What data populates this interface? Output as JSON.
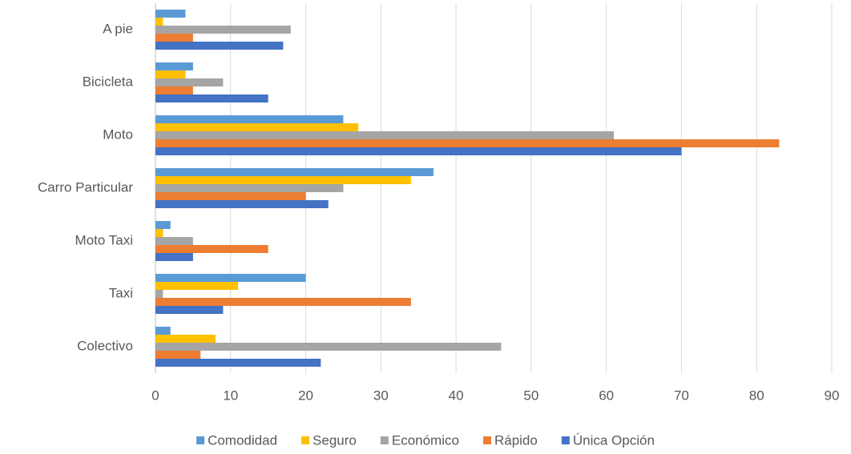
{
  "chart_data": {
    "type": "hbar",
    "categories": [
      "A pie",
      "Bicicleta",
      "Moto",
      "Carro Particular",
      "Moto Taxi",
      "Taxi",
      "Colectivo"
    ],
    "series": [
      {
        "name": "Comodidad",
        "color": "#5b9bd5",
        "values": [
          4,
          5,
          25,
          37,
          2,
          20,
          2
        ]
      },
      {
        "name": "Seguro",
        "color": "#ffc000",
        "values": [
          1,
          4,
          27,
          34,
          1,
          11,
          8
        ]
      },
      {
        "name": "Económico",
        "color": "#a5a5a5",
        "values": [
          18,
          9,
          61,
          25,
          5,
          1,
          46
        ]
      },
      {
        "name": "Rápido",
        "color": "#ed7d31",
        "values": [
          5,
          5,
          83,
          20,
          15,
          34,
          6
        ]
      },
      {
        "name": "Única Opción",
        "color": "#4472c4",
        "values": [
          17,
          15,
          70,
          23,
          5,
          9,
          22
        ]
      }
    ],
    "xlim": [
      0,
      90
    ],
    "xticks": [
      0,
      10,
      20,
      30,
      40,
      50,
      60,
      70,
      80,
      90
    ],
    "grid": true,
    "legend": "bottom"
  }
}
